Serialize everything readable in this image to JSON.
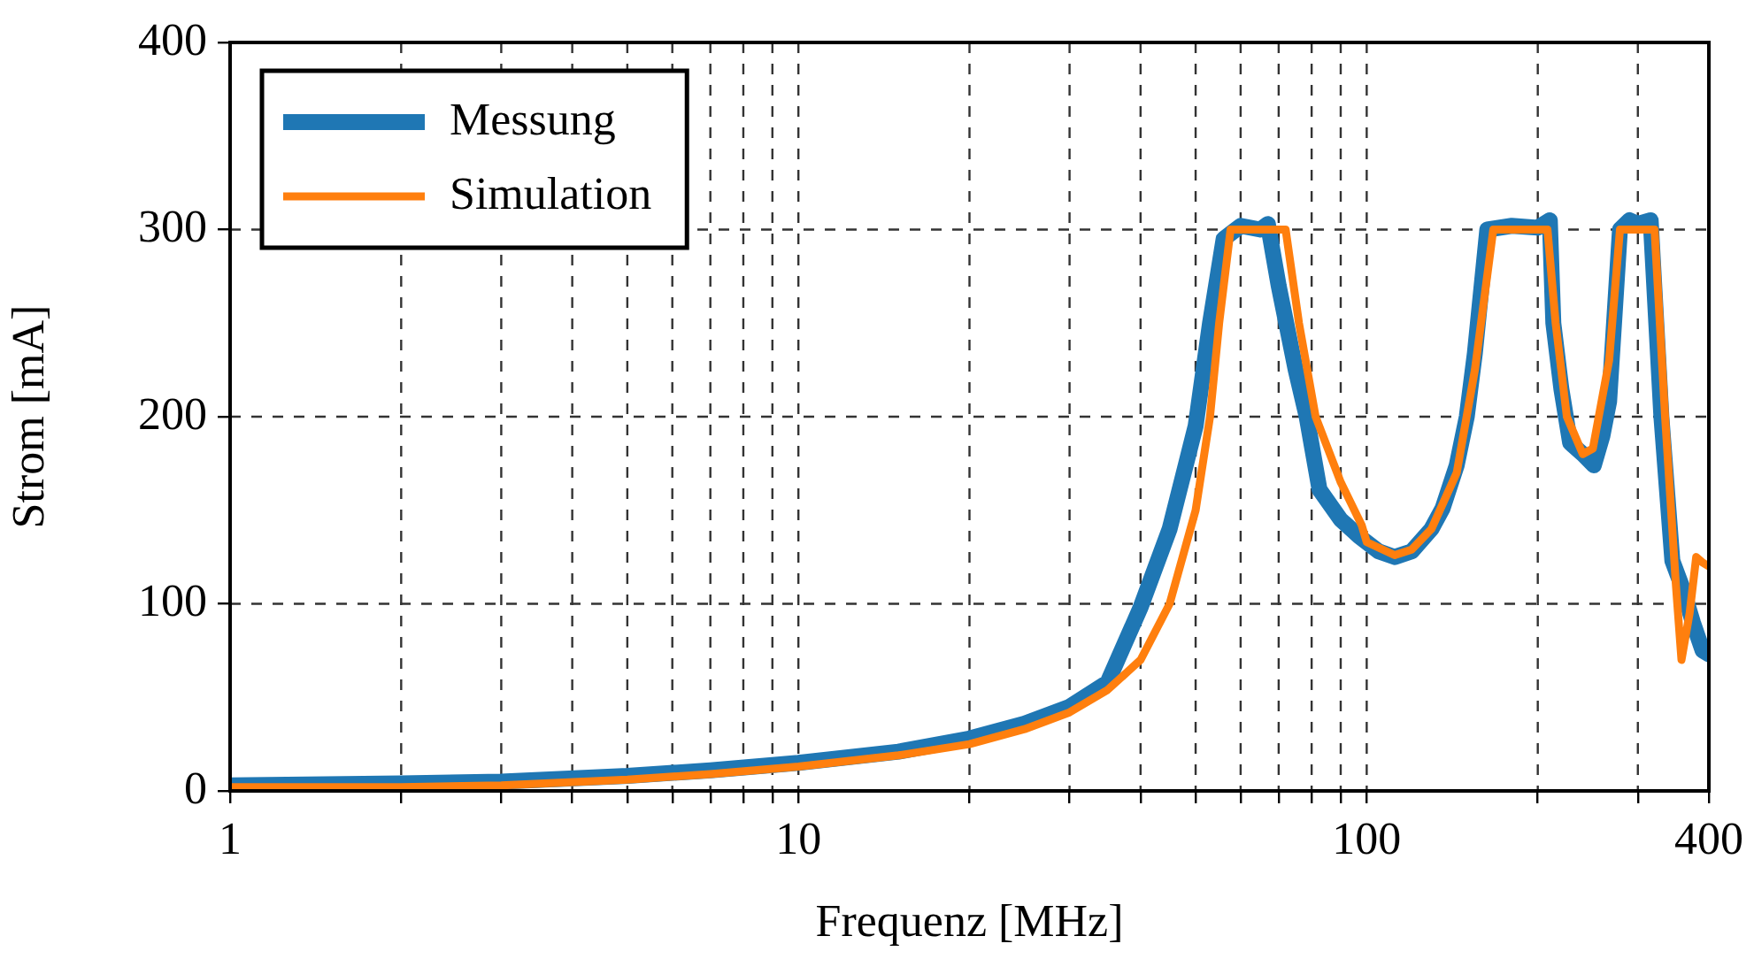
{
  "chart_data": {
    "type": "line",
    "xlabel": "Frequenz [MHz]",
    "ylabel": "Strom [mA]",
    "log": "x",
    "xlim": [
      1,
      400
    ],
    "ylim": [
      0,
      400
    ],
    "xticks": [
      1,
      {
        "value": 2,
        "label": null
      },
      {
        "value": 3,
        "label": null
      },
      {
        "value": 4,
        "label": null
      },
      {
        "value": 5,
        "label": null
      },
      {
        "value": 6,
        "label": null
      },
      {
        "value": 7,
        "label": null
      },
      {
        "value": 8,
        "label": null
      },
      {
        "value": 9,
        "label": null
      },
      10,
      {
        "value": 20,
        "label": null
      },
      {
        "value": 30,
        "label": null
      },
      {
        "value": 40,
        "label": null
      },
      {
        "value": 50,
        "label": null
      },
      {
        "value": 60,
        "label": null
      },
      {
        "value": 70,
        "label": null
      },
      {
        "value": 80,
        "label": null
      },
      {
        "value": 90,
        "label": null
      },
      100,
      {
        "value": 200,
        "label": null
      },
      {
        "value": 300,
        "label": null
      },
      400
    ],
    "yticks": [
      0,
      100,
      200,
      300,
      400
    ],
    "grid": true,
    "legend": "top left",
    "line_style": "solid",
    "marker": "none",
    "series": [
      {
        "name": "Messung",
        "color": "#1f77b4",
        "x": [
          1,
          2,
          3,
          5,
          7,
          10,
          15,
          20,
          25,
          30,
          35,
          40,
          45,
          50,
          53,
          56,
          60,
          65,
          67,
          70,
          75,
          78.4,
          82.6,
          90,
          97,
          105,
          112,
          120,
          130,
          136,
          144,
          150,
          155,
          163,
          180,
          200,
          210,
          213,
          220,
          228,
          240,
          251,
          260,
          267,
          279,
          290,
          300,
          316,
          330,
          345,
          360,
          375,
          390,
          400
        ],
        "values": [
          3,
          4,
          5,
          8,
          11,
          15,
          21,
          28,
          36,
          45,
          58,
          98,
          140,
          195,
          250,
          295,
          302,
          300,
          303,
          270,
          225,
          200,
          161,
          145,
          136,
          128,
          125,
          128,
          140,
          151,
          174,
          200,
          234,
          300,
          302,
          301,
          305,
          250,
          215,
          186,
          180,
          174,
          190,
          208,
          300,
          305,
          303,
          305,
          200,
          123,
          108,
          90,
          75,
          73
        ]
      },
      {
        "name": "Simulation",
        "color": "#ff7f0e",
        "x": [
          1,
          2,
          3,
          5,
          7,
          10,
          15,
          20,
          25,
          30,
          35,
          40,
          45,
          50,
          53,
          55,
          57.6,
          72,
          76,
          81.3,
          90,
          98,
          100,
          112,
          120,
          130,
          144,
          155,
          167,
          208,
          215,
          225,
          240,
          250,
          267,
          279,
          321,
          335,
          350,
          358,
          370,
          380,
          390,
          400
        ],
        "values": [
          2,
          2,
          3,
          6,
          9,
          13,
          19,
          25,
          33,
          42,
          54,
          70,
          100,
          150,
          200,
          250,
          300,
          300,
          250,
          200,
          165,
          142,
          133,
          126,
          129,
          140,
          170,
          225,
          300,
          300,
          250,
          200,
          180,
          183,
          230,
          300,
          300,
          200,
          110,
          70,
          95,
          125,
          122,
          120
        ]
      }
    ]
  }
}
